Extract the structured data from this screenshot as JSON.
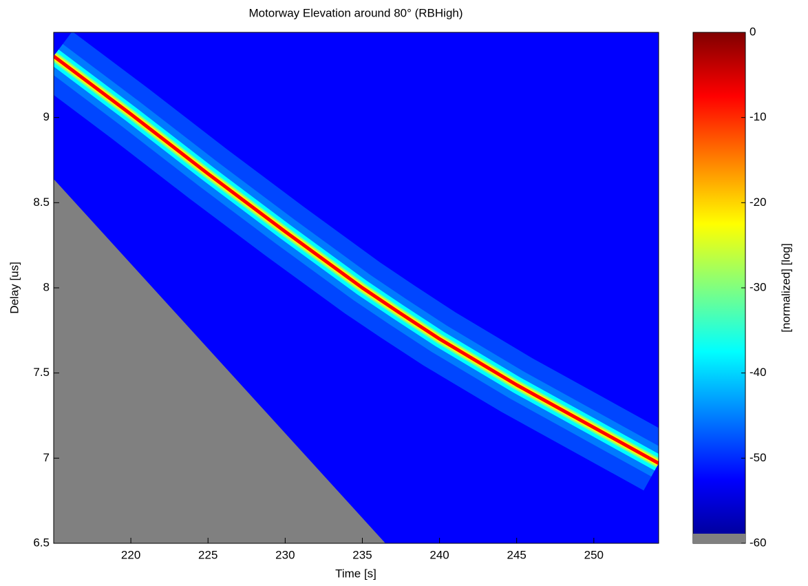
{
  "chart_data": {
    "type": "heatmap",
    "title": "Motorway Elevation around 80° (RBHigh)",
    "x_label": "Time [s]",
    "y_label": "Delay [us]",
    "colorbar_label": "[normalized] [log]",
    "x": [
      215,
      220,
      225,
      230,
      235,
      237.3,
      240,
      245,
      250,
      254.2
    ],
    "values": [
      9.36,
      9.02,
      8.67,
      8.33,
      8.0,
      7.86,
      7.7,
      7.43,
      7.18,
      6.97
    ],
    "xlim": [
      215,
      254.2
    ],
    "xticks": [
      220,
      225,
      230,
      235,
      240,
      245,
      250
    ],
    "ylim": [
      6.5,
      9.5
    ],
    "yticks": [
      6.5,
      7,
      7.5,
      8,
      8.5,
      9
    ],
    "clim": [
      -60,
      0
    ],
    "cticks": [
      0,
      -10,
      -20,
      -30,
      -40,
      -50,
      -60
    ],
    "colormap": [
      "#00008f",
      "#0000ff",
      "#0080ff",
      "#00ffff",
      "#80ff80",
      "#ffff00",
      "#ff8000",
      "#ff0000",
      "#800000"
    ],
    "nan_color": "#808080"
  }
}
